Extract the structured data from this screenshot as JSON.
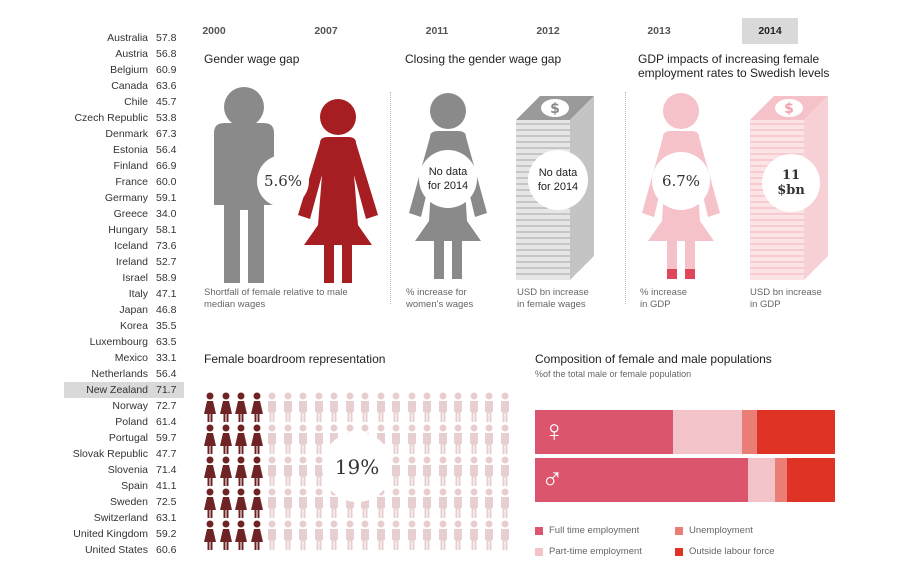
{
  "countries": [
    {
      "name": "Australia",
      "value": "57.8"
    },
    {
      "name": "Austria",
      "value": "56.8"
    },
    {
      "name": "Belgium",
      "value": "60.9"
    },
    {
      "name": "Canada",
      "value": "63.6"
    },
    {
      "name": "Chile",
      "value": "45.7"
    },
    {
      "name": "Czech Republic",
      "value": "53.8"
    },
    {
      "name": "Denmark",
      "value": "67.3"
    },
    {
      "name": "Estonia",
      "value": "56.4"
    },
    {
      "name": "Finland",
      "value": "66.9"
    },
    {
      "name": "France",
      "value": "60.0"
    },
    {
      "name": "Germany",
      "value": "59.1"
    },
    {
      "name": "Greece",
      "value": "34.0"
    },
    {
      "name": "Hungary",
      "value": "58.1"
    },
    {
      "name": "Iceland",
      "value": "73.6"
    },
    {
      "name": "Ireland",
      "value": "52.7"
    },
    {
      "name": "Israel",
      "value": "58.9"
    },
    {
      "name": "Italy",
      "value": "47.1"
    },
    {
      "name": "Japan",
      "value": "46.8"
    },
    {
      "name": "Korea",
      "value": "35.5"
    },
    {
      "name": "Luxembourg",
      "value": "63.5"
    },
    {
      "name": "Mexico",
      "value": "33.1"
    },
    {
      "name": "Netherlands",
      "value": "56.4"
    },
    {
      "name": "New Zealand",
      "value": "71.7"
    },
    {
      "name": "Norway",
      "value": "72.7"
    },
    {
      "name": "Poland",
      "value": "61.4"
    },
    {
      "name": "Portugal",
      "value": "59.7"
    },
    {
      "name": "Slovak Republic",
      "value": "47.7"
    },
    {
      "name": "Slovenia",
      "value": "71.4"
    },
    {
      "name": "Spain",
      "value": "41.1"
    },
    {
      "name": "Sweden",
      "value": "72.5"
    },
    {
      "name": "Switzerland",
      "value": "63.1"
    },
    {
      "name": "United Kingdom",
      "value": "59.2"
    },
    {
      "name": "United States",
      "value": "60.6"
    }
  ],
  "selected_country": "New Zealand",
  "years": [
    "2000",
    "2007",
    "2011",
    "2012",
    "2013",
    "2014"
  ],
  "active_year": "2014",
  "wage_gap": {
    "title": "Gender wage gap",
    "value": "5.6%",
    "caption_line1": "Shortfall of female relative to male",
    "caption_line2": "median wages"
  },
  "closing_gap": {
    "title": "Closing the gender wage gap",
    "women_line1": "No data",
    "women_line2": "for 2014",
    "women_caption_line1": "% increase for",
    "women_caption_line2": "women's wages",
    "usd_line1": "No data",
    "usd_line2": "for 2014",
    "usd_caption_line1": "USD bn increase",
    "usd_caption_line2": "in female wages"
  },
  "gdp_impacts": {
    "title_line1": "GDP impacts of increasing female",
    "title_line2": "employment rates to Swedish levels",
    "pct_value": "6.7%",
    "pct_caption_line1": "% increase",
    "pct_caption_line2": "in GDP",
    "usd_value_line1": "11",
    "usd_value_line2": "$bn",
    "usd_caption_line1": "USD bn increase",
    "usd_caption_line2": "in GDP"
  },
  "boardroom": {
    "title": "Female boardroom representation",
    "value": "19%",
    "percent": 19
  },
  "composition": {
    "title": "Composition of female and male populations",
    "subtitle": "%of the total male or female population",
    "female_symbol": "♀",
    "male_symbol": "♂",
    "female": [
      46,
      23,
      5,
      26
    ],
    "male": [
      71,
      9,
      4,
      16
    ],
    "legend": [
      {
        "label": "Full time employment",
        "color": "#db566d"
      },
      {
        "label": "Part-time employment",
        "color": "#f2c3c8"
      },
      {
        "label": "Unemployment",
        "color": "#ea7d75"
      },
      {
        "label": "Outside labour force",
        "color": "#df3425"
      }
    ]
  },
  "colors": {
    "male_gray": "#8a8a8a",
    "female_red": "#a61d22",
    "female_pink": "#f4c2c8",
    "female_pink_dark": "#de4759",
    "board_dark": "#6e2424",
    "board_light": "#e8cfcf"
  },
  "icons": {
    "dollar": "dollar-icon",
    "female": "female-person-icon",
    "male": "male-person-icon"
  }
}
